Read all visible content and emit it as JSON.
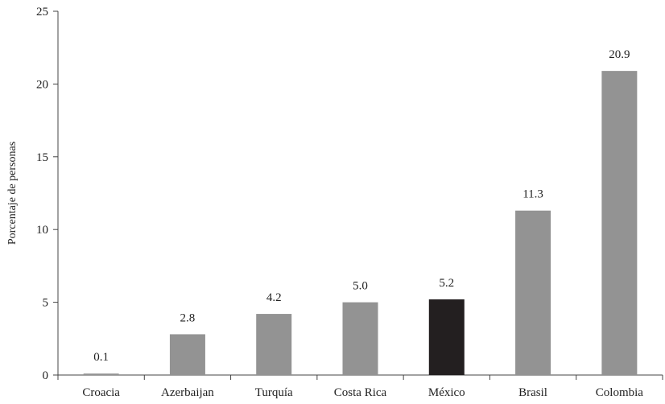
{
  "chart_data": {
    "type": "bar",
    "categories": [
      "Croacia",
      "Azerbaijan",
      "Turquía",
      "Costa Rica",
      "México",
      "Brasil",
      "Colombia"
    ],
    "values": [
      0.1,
      2.8,
      4.2,
      5.0,
      5.2,
      11.3,
      20.9
    ],
    "data_labels": [
      "0.1",
      "2.8",
      "4.2",
      "5.0",
      "5.2",
      "11.3",
      "20.9"
    ],
    "highlight_category": "México",
    "title": "",
    "xlabel": "",
    "ylabel": "Porcentaje de personas",
    "ylim": [
      0,
      25
    ],
    "yticks": [
      0,
      5,
      10,
      15,
      20,
      25
    ],
    "grid": false,
    "legend": "none",
    "colors": {
      "bar": "#939393",
      "highlight": "#231f20",
      "axis": "#444444"
    }
  }
}
